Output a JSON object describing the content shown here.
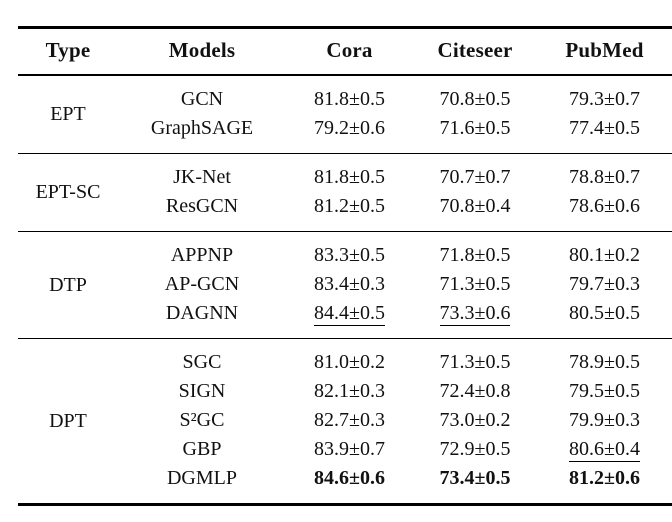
{
  "table": {
    "columns": [
      "Type",
      "Models",
      "Cora",
      "Citeseer",
      "PubMed"
    ],
    "groups": [
      {
        "type": "EPT",
        "rows": [
          {
            "model": "GCN",
            "cora": "81.8±0.5",
            "citeseer": "70.8±0.5",
            "pubmed": "79.3±0.7"
          },
          {
            "model": "GraphSAGE",
            "cora": "79.2±0.6",
            "citeseer": "71.6±0.5",
            "pubmed": "77.4±0.5"
          }
        ]
      },
      {
        "type": "EPT-SC",
        "rows": [
          {
            "model": "JK-Net",
            "cora": "81.8±0.5",
            "citeseer": "70.7±0.7",
            "pubmed": "78.8±0.7"
          },
          {
            "model": "ResGCN",
            "cora": "81.2±0.5",
            "citeseer": "70.8±0.4",
            "pubmed": "78.6±0.6"
          }
        ]
      },
      {
        "type": "DTP",
        "rows": [
          {
            "model": "APPNP",
            "cora": "83.3±0.5",
            "citeseer": "71.8±0.5",
            "pubmed": "80.1±0.2"
          },
          {
            "model": "AP-GCN",
            "cora": "83.4±0.3",
            "citeseer": "71.3±0.5",
            "pubmed": "79.7±0.3"
          },
          {
            "model": "DAGNN",
            "cora": "84.4±0.5",
            "citeseer": "73.3±0.6",
            "pubmed": "80.5±0.5",
            "emphasis": {
              "cora": "underline",
              "citeseer": "underline"
            }
          }
        ]
      },
      {
        "type": "DPT",
        "rows": [
          {
            "model": "SGC",
            "cora": "81.0±0.2",
            "citeseer": "71.3±0.5",
            "pubmed": "78.9±0.5"
          },
          {
            "model": "SIGN",
            "cora": "82.1±0.3",
            "citeseer": "72.4±0.8",
            "pubmed": "79.5±0.5"
          },
          {
            "model": "S²GC",
            "cora": "82.7±0.3",
            "citeseer": "73.0±0.2",
            "pubmed": "79.9±0.3"
          },
          {
            "model": "GBP",
            "cora": "83.9±0.7",
            "citeseer": "72.9±0.5",
            "pubmed": "80.6±0.4",
            "emphasis": {
              "pubmed": "underline"
            }
          },
          {
            "model": "DGMLP",
            "cora": "84.6±0.6",
            "citeseer": "73.4±0.5",
            "pubmed": "81.2±0.6",
            "emphasis": {
              "cora": "bold",
              "citeseer": "bold",
              "pubmed": "bold"
            }
          }
        ]
      }
    ]
  }
}
